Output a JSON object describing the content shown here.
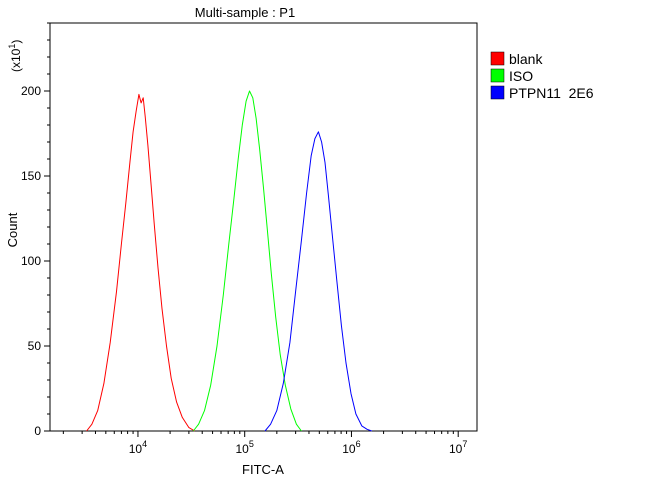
{
  "chart_data": {
    "type": "line",
    "title": "Multi-sample : P1",
    "xlabel": "FITC-A",
    "ylabel": "Count",
    "y_multiplier": "(x10^1)",
    "x_scale": "log",
    "xlim": [
      1500,
      15000000
    ],
    "ylim": [
      0,
      240
    ],
    "x_ticks": [
      {
        "value": 10000,
        "base": "10",
        "exp": "4"
      },
      {
        "value": 100000,
        "base": "10",
        "exp": "5"
      },
      {
        "value": 1000000,
        "base": "10",
        "exp": "6"
      },
      {
        "value": 10000000,
        "base": "10",
        "exp": "7"
      }
    ],
    "y_ticks": [
      0,
      50,
      100,
      150,
      200
    ],
    "legend_position": "top-right",
    "series": [
      {
        "name": "blank",
        "color": "#ff0000",
        "x": [
          3300,
          3700,
          4200,
          4800,
          5500,
          6300,
          7000,
          7700,
          8400,
          9000,
          9600,
          10200,
          10700,
          11200,
          11700,
          12400,
          13200,
          14200,
          15400,
          16800,
          18500,
          20500,
          23000,
          26000,
          30000,
          34000
        ],
        "y": [
          0,
          4,
          12,
          28,
          52,
          82,
          110,
          134,
          158,
          176,
          188,
          198,
          193,
          196,
          185,
          168,
          147,
          122,
          96,
          72,
          50,
          31,
          17,
          8,
          2,
          0
        ]
      },
      {
        "name": "ISO",
        "color": "#00ff00",
        "x": [
          33000,
          37000,
          42000,
          48000,
          55000,
          63000,
          71000,
          79000,
          87000,
          95000,
          103000,
          111000,
          119000,
          128000,
          138000,
          150000,
          163000,
          178000,
          195000,
          215000,
          240000,
          270000,
          305000,
          340000
        ],
        "y": [
          0,
          4,
          12,
          27,
          50,
          80,
          110,
          136,
          160,
          180,
          194,
          200,
          196,
          184,
          166,
          143,
          118,
          92,
          67,
          45,
          27,
          13,
          4,
          0
        ]
      },
      {
        "name": "PTPN11  2E6",
        "color": "#0000ff",
        "x": [
          155000,
          175000,
          200000,
          230000,
          265000,
          300000,
          340000,
          380000,
          420000,
          455000,
          490000,
          525000,
          565000,
          610000,
          665000,
          730000,
          805000,
          890000,
          990000,
          1100000,
          1250000,
          1400000,
          1550000
        ],
        "y": [
          0,
          4,
          12,
          28,
          52,
          82,
          112,
          140,
          162,
          172,
          176,
          170,
          158,
          138,
          114,
          88,
          62,
          40,
          22,
          10,
          3,
          1,
          0
        ]
      }
    ]
  }
}
